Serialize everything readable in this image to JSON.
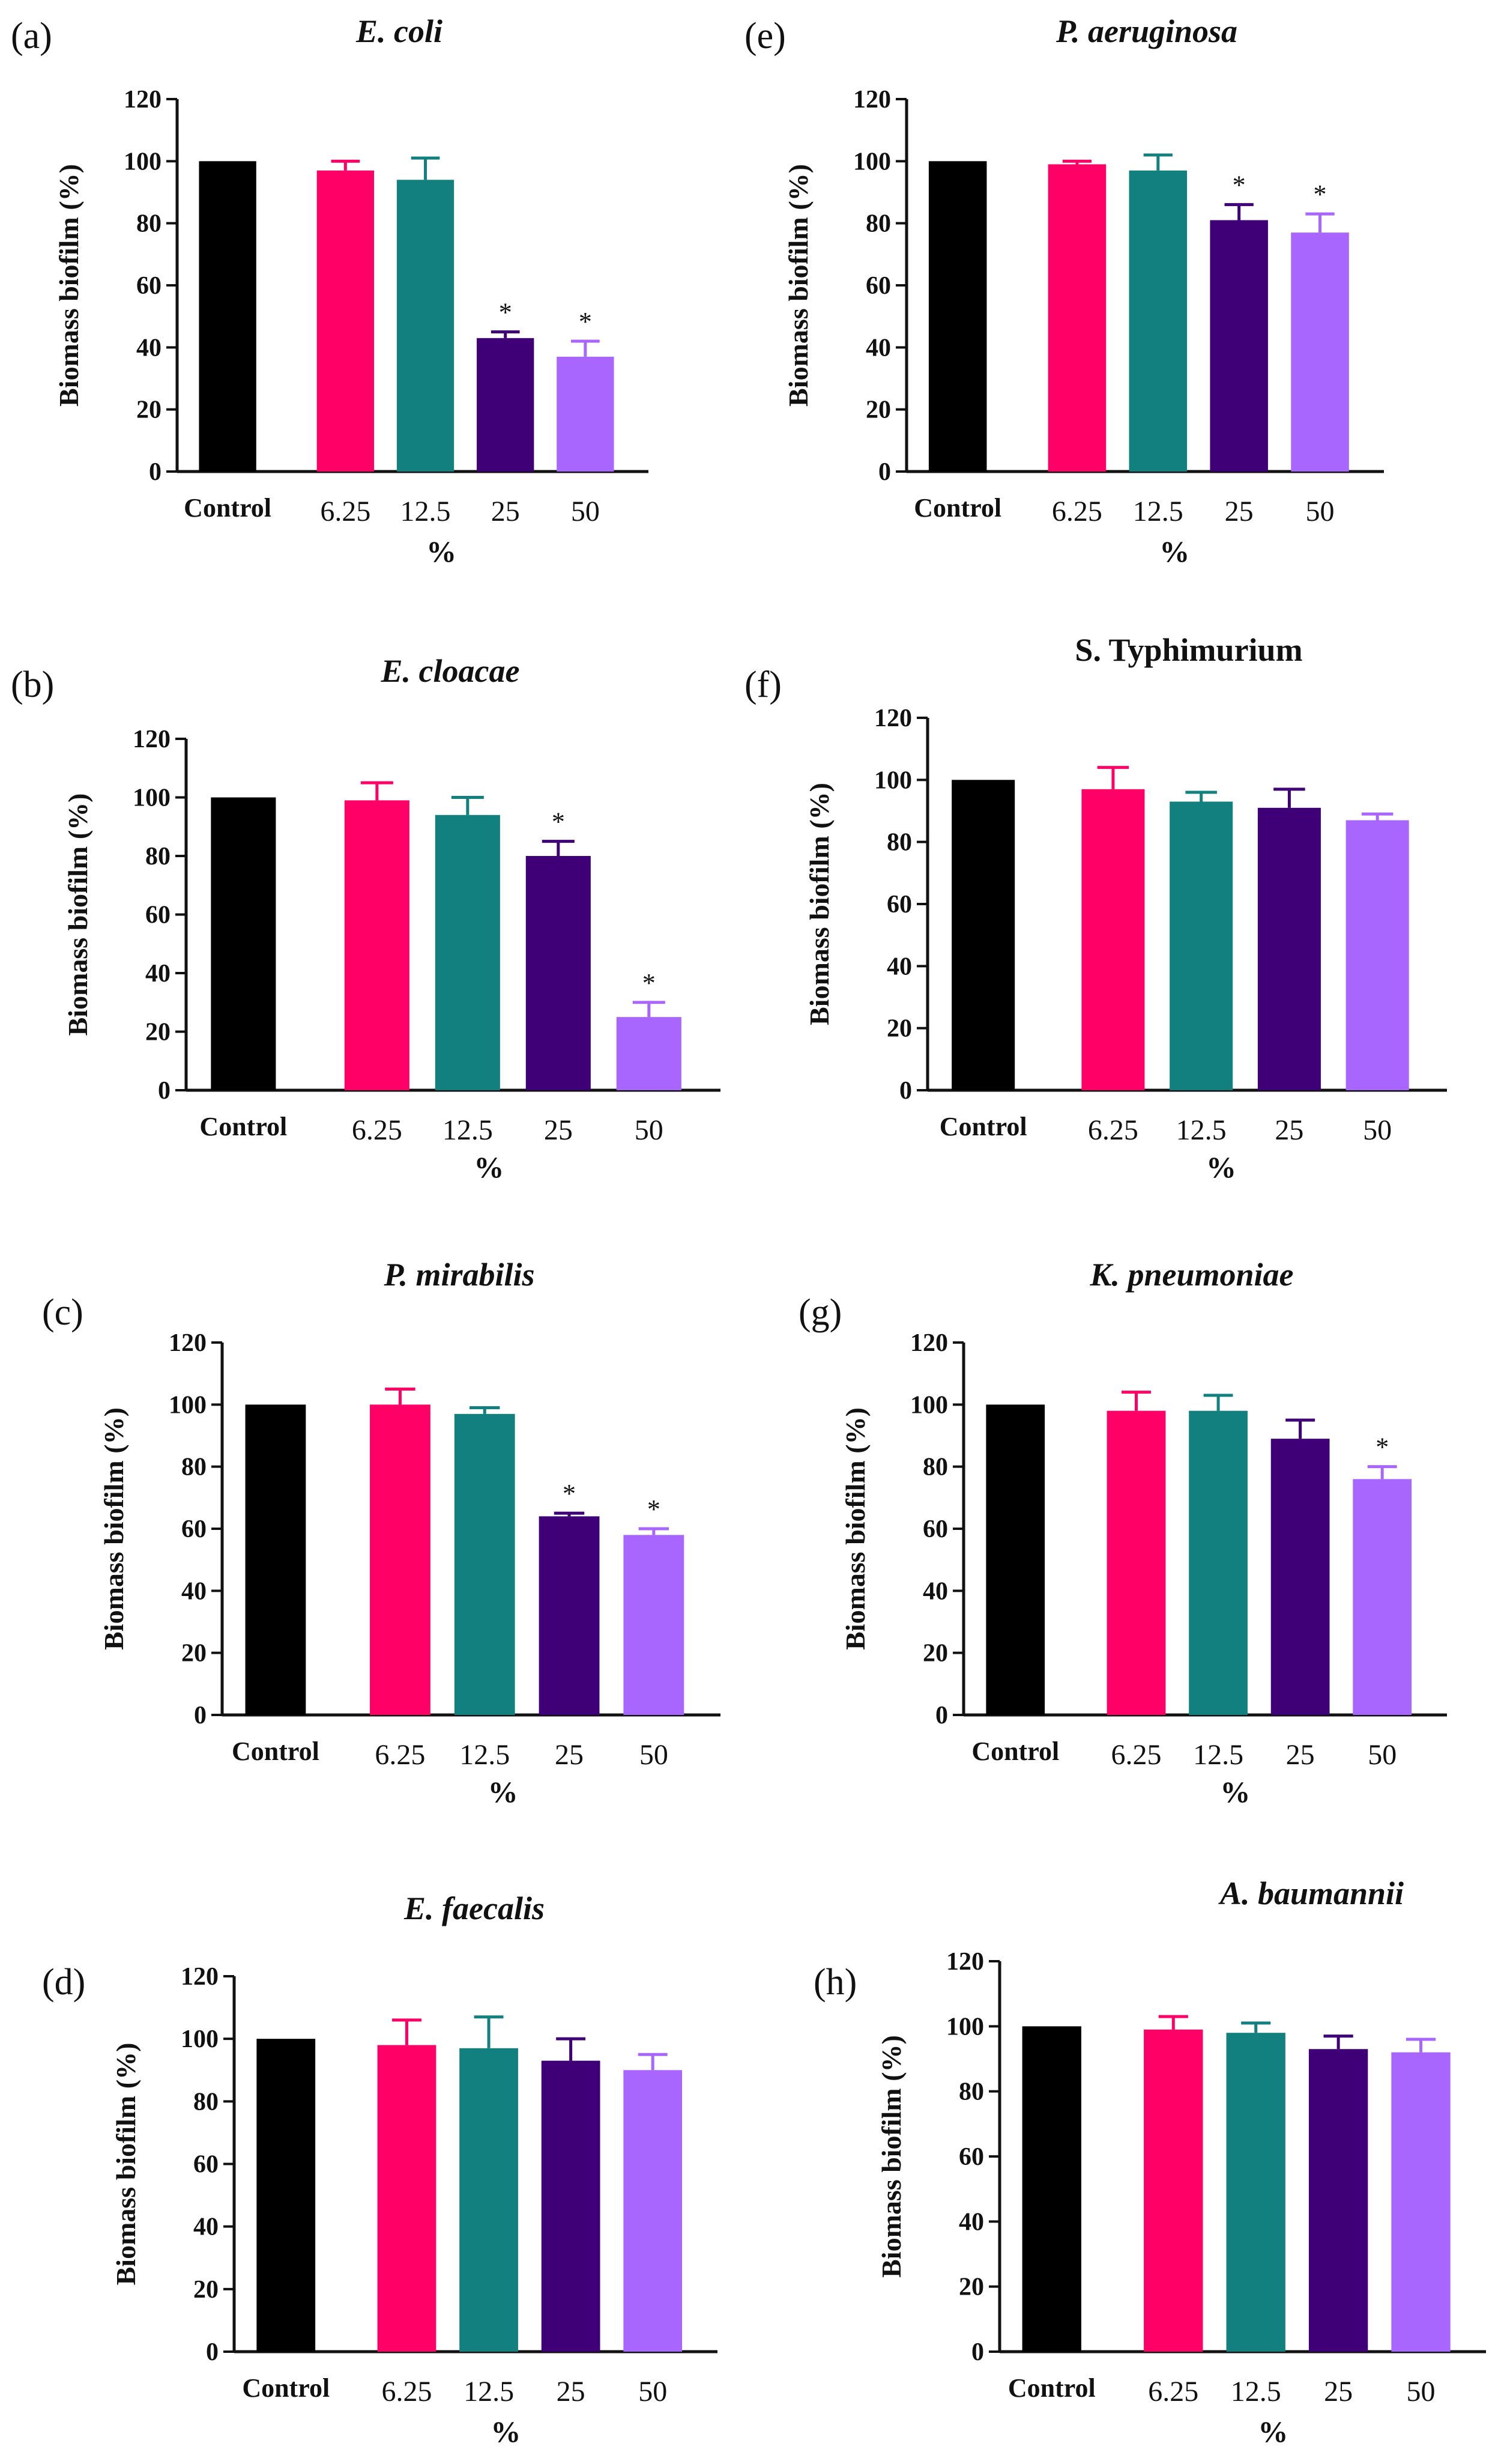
{
  "colors": {
    "Control": "#000000",
    "6.25": "#ff0066",
    "12.5": "#138080",
    "25": "#3f0077",
    "50": "#a866ff"
  },
  "chart_data": [
    {
      "panel": "(a)",
      "title": "E. coli",
      "title_italic": true,
      "type": "bar",
      "categories": [
        "Control",
        "6.25",
        "12.5",
        "25",
        "50"
      ],
      "values": [
        100,
        97,
        94,
        43,
        37
      ],
      "errors": [
        0,
        3,
        7,
        2,
        5
      ],
      "significant": [
        false,
        false,
        false,
        true,
        true
      ],
      "ylabel": "Biomass biofilm (%)",
      "xlabel": "%",
      "ylim": [
        0,
        120
      ],
      "yticks": [
        0,
        20,
        40,
        60,
        80,
        100,
        120
      ]
    },
    {
      "panel": "(b)",
      "title": "E. cloacae",
      "title_italic": true,
      "type": "bar",
      "categories": [
        "Control",
        "6.25",
        "12.5",
        "25",
        "50"
      ],
      "values": [
        100,
        99,
        94,
        80,
        25
      ],
      "errors": [
        0,
        6,
        6,
        5,
        5
      ],
      "significant": [
        false,
        false,
        false,
        true,
        true
      ],
      "ylabel": "Biomass biofilm (%)",
      "xlabel": "%",
      "ylim": [
        0,
        120
      ],
      "yticks": [
        0,
        20,
        40,
        60,
        80,
        100,
        120
      ]
    },
    {
      "panel": "(c)",
      "title": "P. mirabilis",
      "title_italic": true,
      "type": "bar",
      "categories": [
        "Control",
        "6.25",
        "12.5",
        "25",
        "50"
      ],
      "values": [
        100,
        100,
        97,
        64,
        58
      ],
      "errors": [
        0,
        5,
        2,
        1,
        2
      ],
      "significant": [
        false,
        false,
        false,
        true,
        true
      ],
      "ylabel": "Biomass biofilm (%)",
      "xlabel": "%",
      "ylim": [
        0,
        120
      ],
      "yticks": [
        0,
        20,
        40,
        60,
        80,
        100,
        120
      ]
    },
    {
      "panel": "(d)",
      "title": "E. faecalis",
      "title_italic": true,
      "type": "bar",
      "categories": [
        "Control",
        "6.25",
        "12.5",
        "25",
        "50"
      ],
      "values": [
        100,
        98,
        97,
        93,
        90
      ],
      "errors": [
        0,
        8,
        10,
        7,
        5
      ],
      "significant": [
        false,
        false,
        false,
        false,
        false
      ],
      "ylabel": "Biomass biofilm (%)",
      "xlabel": "%",
      "ylim": [
        0,
        120
      ],
      "yticks": [
        0,
        20,
        40,
        60,
        80,
        100,
        120
      ]
    },
    {
      "panel": "(e)",
      "title": "P. aeruginosa",
      "title_italic": true,
      "type": "bar",
      "categories": [
        "Control",
        "6.25",
        "12.5",
        "25",
        "50"
      ],
      "values": [
        100,
        99,
        97,
        81,
        77
      ],
      "errors": [
        0,
        1,
        5,
        5,
        6
      ],
      "significant": [
        false,
        false,
        false,
        true,
        true
      ],
      "ylabel": "Biomass biofilm (%)",
      "xlabel": "%",
      "ylim": [
        0,
        120
      ],
      "yticks": [
        0,
        20,
        40,
        60,
        80,
        100,
        120
      ]
    },
    {
      "panel": "(f)",
      "title": "S. Typhimurium",
      "title_italic": false,
      "type": "bar",
      "categories": [
        "Control",
        "6.25",
        "12.5",
        "25",
        "50"
      ],
      "values": [
        100,
        97,
        93,
        91,
        87
      ],
      "errors": [
        0,
        7,
        3,
        6,
        2
      ],
      "significant": [
        false,
        false,
        false,
        false,
        false
      ],
      "ylabel": "Biomass biofilm (%)",
      "xlabel": "%",
      "ylim": [
        0,
        120
      ],
      "yticks": [
        0,
        20,
        40,
        60,
        80,
        100,
        120
      ]
    },
    {
      "panel": "(g)",
      "title": "K. pneumoniae",
      "title_italic": true,
      "type": "bar",
      "categories": [
        "Control",
        "6.25",
        "12.5",
        "25",
        "50"
      ],
      "values": [
        100,
        98,
        98,
        89,
        76
      ],
      "errors": [
        0,
        6,
        5,
        6,
        4
      ],
      "significant": [
        false,
        false,
        false,
        false,
        true
      ],
      "ylabel": "Biomass biofilm (%)",
      "xlabel": "%",
      "ylim": [
        0,
        120
      ],
      "yticks": [
        0,
        20,
        40,
        60,
        80,
        100,
        120
      ]
    },
    {
      "panel": "(h)",
      "title": "A. baumannii",
      "title_italic": true,
      "type": "bar",
      "categories": [
        "Control",
        "6.25",
        "12.5",
        "25",
        "50"
      ],
      "values": [
        100,
        99,
        98,
        93,
        92
      ],
      "errors": [
        0,
        4,
        3,
        4,
        4
      ],
      "significant": [
        false,
        false,
        false,
        false,
        false
      ],
      "ylabel": "Biomass biofilm (%)",
      "xlabel": "%",
      "ylim": [
        0,
        120
      ],
      "yticks": [
        0,
        20,
        40,
        60,
        80,
        100,
        120
      ]
    }
  ]
}
